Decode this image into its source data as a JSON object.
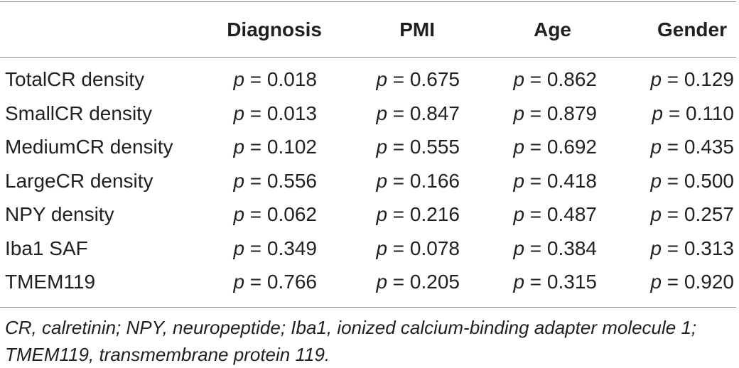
{
  "table": {
    "columns": [
      "",
      "Diagnosis",
      "PMI",
      "Age",
      "Gender"
    ],
    "p_label": "p",
    "rows": [
      {
        "label": "TotalCR density",
        "values": [
          "= 0.018",
          "= 0.675",
          "= 0.862",
          "= 0.129"
        ]
      },
      {
        "label": "SmallCR density",
        "values": [
          "= 0.013",
          "= 0.847",
          "= 0.879",
          "= 0.110"
        ]
      },
      {
        "label": "MediumCR density",
        "values": [
          "= 0.102",
          "= 0.555",
          "= 0.692",
          "= 0.435"
        ]
      },
      {
        "label": "LargeCR density",
        "values": [
          "= 0.556",
          "= 0.166",
          "= 0.418",
          "= 0.500"
        ]
      },
      {
        "label": "NPY density",
        "values": [
          "= 0.062",
          "= 0.216",
          "= 0.487",
          "= 0.257"
        ]
      },
      {
        "label": "Iba1 SAF",
        "values": [
          "= 0.349",
          "= 0.078",
          "= 0.384",
          "= 0.313"
        ]
      },
      {
        "label": "TMEM119",
        "values": [
          "= 0.766",
          "= 0.205",
          "= 0.315",
          "= 0.920"
        ]
      }
    ],
    "footnote": "CR, calretinin; NPY, neuropeptide; Iba1, ionized calcium-binding adapter molecule 1; TMEM119, transmembrane protein 119."
  }
}
